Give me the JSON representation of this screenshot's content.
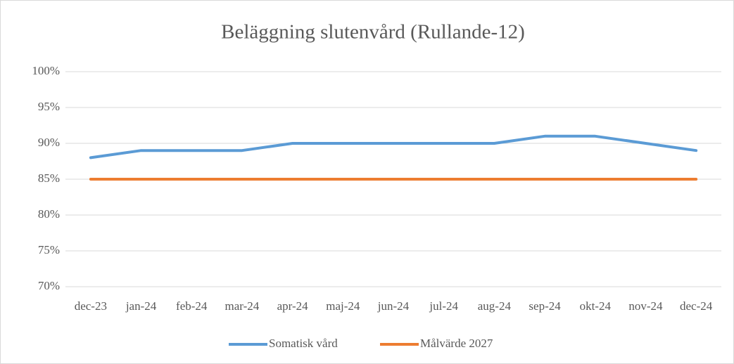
{
  "chart_data": {
    "type": "line",
    "title": "Beläggning slutenvård (Rullande-12)",
    "categories": [
      "dec-23",
      "jan-24",
      "feb-24",
      "mar-24",
      "apr-24",
      "maj-24",
      "jun-24",
      "jul-24",
      "aug-24",
      "sep-24",
      "okt-24",
      "nov-24",
      "dec-24"
    ],
    "series": [
      {
        "name": "Somatisk vård",
        "color": "#5b9bd5",
        "values": [
          88,
          89,
          89,
          89,
          90,
          90,
          90,
          90,
          90,
          91,
          91,
          90,
          89
        ]
      },
      {
        "name": "Målvärde 2027",
        "color": "#ed7d31",
        "values": [
          85,
          85,
          85,
          85,
          85,
          85,
          85,
          85,
          85,
          85,
          85,
          85,
          85
        ]
      }
    ],
    "ylim": [
      70,
      100
    ],
    "yticks": [
      {
        "value": 70,
        "label": "70%"
      },
      {
        "value": 75,
        "label": "75%"
      },
      {
        "value": 80,
        "label": "80%"
      },
      {
        "value": 85,
        "label": "85%"
      },
      {
        "value": 90,
        "label": "90%"
      },
      {
        "value": 95,
        "label": "95%"
      },
      {
        "value": 100,
        "label": "100%"
      }
    ],
    "grid": true,
    "legend": "bottom"
  }
}
